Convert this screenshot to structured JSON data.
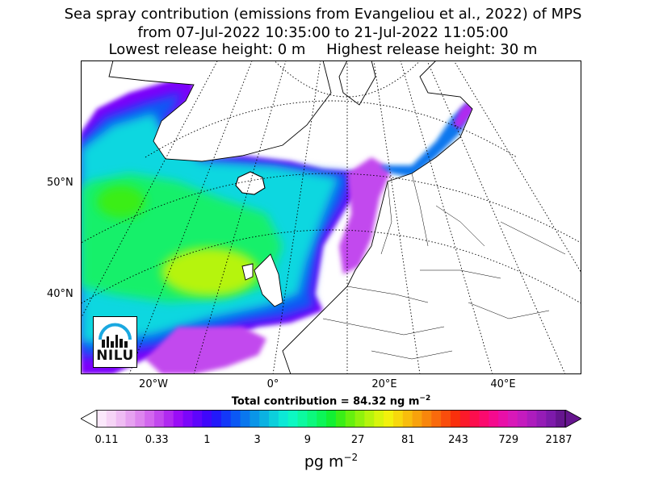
{
  "title": {
    "line1": "Sea spray contribution (emissions from Evangeliou et al., 2022) of MPS",
    "line2": "from 07-Jul-2022 10:35:00 to 21-Jul-2022 11:05:00",
    "release_low": "Lowest release height: 0 m",
    "release_high": "Highest release height: 30 m"
  },
  "axes": {
    "lat_labels": [
      "50°N",
      "40°N"
    ],
    "lon_labels": [
      "20°W",
      "0°",
      "20°E",
      "40°E"
    ]
  },
  "total": {
    "prefix": "Total contribution = 84.32 ng m",
    "exp": "−2"
  },
  "colorbar": {
    "ticks": [
      "0.11",
      "0.33",
      "1",
      "3",
      "9",
      "27",
      "81",
      "243",
      "729",
      "2187"
    ],
    "colors": [
      "#fbe8fb",
      "#f6d4f6",
      "#efbcf3",
      "#e6a1f0",
      "#dd85ee",
      "#d267ee",
      "#c249ee",
      "#b02af0",
      "#9a0df6",
      "#7c06fa",
      "#5e05fb",
      "#3f07fb",
      "#2219fa",
      "#1338f8",
      "#0b58f4",
      "#0a77ee",
      "#0a95e8",
      "#0bb2e2",
      "#0ccfdc",
      "#0ce8d6",
      "#0cf8c2",
      "#0cf9a0",
      "#0cf87d",
      "#0cf558",
      "#12f033",
      "#3aee17",
      "#66f00e",
      "#90f20c",
      "#b6f40c",
      "#d8f50c",
      "#f2f10c",
      "#f7d80c",
      "#f8bd0c",
      "#f8a20c",
      "#f8860c",
      "#f96a0c",
      "#f94d0c",
      "#f9300c",
      "#fb1a2a",
      "#fc0e4d",
      "#fb0a6e",
      "#f50a8e",
      "#e80fa8",
      "#d818b8",
      "#c41bbe",
      "#ad1cbd",
      "#951cb6",
      "#7d1aaa",
      "#66158f"
    ],
    "unit_base": "pg m",
    "unit_exp": "−2"
  },
  "logo": {
    "text": "NILU"
  }
}
